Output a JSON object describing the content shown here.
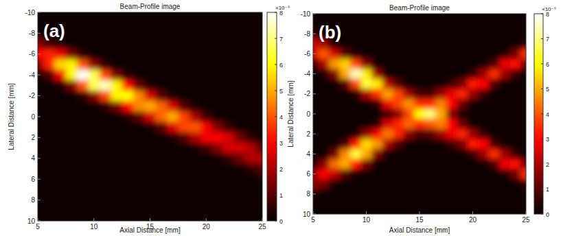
{
  "chart_data": [
    {
      "type": "heatmap",
      "title": "Beam-Profile image",
      "panel_label": "(a)",
      "x_label": "Axial Distance [mm]",
      "y_label": "Lateral Distance [mm]",
      "xlim": [
        5,
        25
      ],
      "ylim": [
        -10,
        10
      ],
      "xticks": [
        5,
        10,
        15,
        20,
        25
      ],
      "yticks": [
        -10,
        -8,
        -6,
        -4,
        -2,
        0,
        2,
        4,
        6,
        8,
        10
      ],
      "x": [
        5,
        6,
        7,
        8,
        9,
        10,
        11,
        12,
        13,
        14,
        15,
        16,
        17,
        18,
        19,
        20,
        21,
        22,
        23,
        24,
        25
      ],
      "y": [
        -10,
        -9,
        -8,
        -7,
        -6,
        -5,
        -4,
        -3,
        -2,
        -1,
        0,
        1,
        2,
        3,
        4,
        5,
        6,
        7,
        8,
        9,
        10
      ],
      "cells": [
        [
          0,
          0,
          0,
          0,
          0,
          0,
          0,
          0,
          0,
          0,
          0,
          0,
          0,
          0,
          0,
          0,
          0,
          0,
          0,
          0,
          0
        ],
        [
          0,
          0,
          0,
          0,
          0,
          0,
          0,
          0,
          0,
          0,
          0,
          0,
          0,
          0,
          0,
          0,
          0,
          0,
          0,
          0,
          0
        ],
        [
          0.2,
          0,
          0,
          0,
          0,
          0,
          0,
          0,
          0,
          0,
          0,
          0,
          0,
          0,
          0,
          0,
          0,
          0,
          0,
          0,
          0
        ],
        [
          1.5,
          0.8,
          0.3,
          0,
          0,
          0,
          0,
          0,
          0,
          0,
          0,
          0,
          0,
          0,
          0,
          0,
          0,
          0,
          0,
          0,
          0
        ],
        [
          3,
          3.4,
          2.8,
          1.4,
          0.5,
          0,
          0,
          0,
          0,
          0,
          0,
          0,
          0,
          0,
          0,
          0,
          0,
          0,
          0,
          0,
          0
        ],
        [
          1.5,
          3.4,
          5.5,
          5.9,
          4,
          1.6,
          0.5,
          0,
          0,
          0,
          0,
          0,
          0,
          0,
          0,
          0,
          0,
          0,
          0,
          0,
          0
        ],
        [
          0.2,
          0.8,
          2.8,
          5.9,
          8,
          6.7,
          3.8,
          1.4,
          0.4,
          0,
          0,
          0,
          0,
          0,
          0,
          0,
          0,
          0,
          0,
          0,
          0
        ],
        [
          0,
          0,
          0.3,
          1.4,
          4,
          6.7,
          7.5,
          5.9,
          3,
          1.1,
          0.3,
          0,
          0,
          0,
          0,
          0,
          0,
          0,
          0,
          0,
          0
        ],
        [
          0,
          0,
          0,
          0,
          0.5,
          1.6,
          3.8,
          5.9,
          6,
          4.6,
          2.5,
          1,
          0.3,
          0,
          0,
          0,
          0,
          0,
          0,
          0,
          0
        ],
        [
          0,
          0,
          0,
          0,
          0,
          0,
          0.5,
          1.4,
          3,
          4.6,
          5,
          4.2,
          2.5,
          0.9,
          0.3,
          0,
          0,
          0,
          0,
          0,
          0
        ],
        [
          0,
          0,
          0,
          0,
          0,
          0,
          0,
          0,
          0.4,
          1.1,
          2.5,
          4.2,
          5,
          3.8,
          2,
          0.7,
          0.2,
          0,
          0,
          0,
          0
        ],
        [
          0,
          0,
          0,
          0,
          0,
          0,
          0,
          0,
          0,
          0,
          0.3,
          1,
          2.5,
          3.8,
          4,
          2.9,
          1.5,
          0.6,
          0.2,
          0,
          0
        ],
        [
          0,
          0,
          0,
          0,
          0,
          0,
          0,
          0,
          0,
          0,
          0,
          0,
          0.3,
          0.9,
          2,
          2.9,
          3,
          2.5,
          1.3,
          0.5,
          0.2
        ],
        [
          0,
          0,
          0,
          0,
          0,
          0,
          0,
          0,
          0,
          0,
          0,
          0,
          0,
          0,
          0.3,
          0.7,
          1.5,
          2.5,
          2.5,
          2.1,
          1
        ],
        [
          0,
          0,
          0,
          0,
          0,
          0,
          0,
          0,
          0,
          0,
          0,
          0,
          0,
          0,
          0,
          0,
          0.2,
          0.6,
          1.3,
          2.1,
          2
        ],
        [
          0,
          0,
          0,
          0,
          0,
          0,
          0,
          0,
          0,
          0,
          0,
          0,
          0,
          0,
          0,
          0,
          0,
          0,
          0.2,
          0.5,
          1
        ],
        [
          0,
          0,
          0,
          0,
          0,
          0,
          0,
          0,
          0,
          0,
          0,
          0,
          0,
          0,
          0,
          0,
          0,
          0,
          0,
          0,
          0.2
        ],
        [
          0,
          0,
          0,
          0,
          0,
          0,
          0,
          0,
          0,
          0,
          0,
          0,
          0,
          0,
          0,
          0,
          0,
          0,
          0,
          0,
          0
        ],
        [
          0,
          0,
          0,
          0,
          0,
          0,
          0,
          0,
          0,
          0,
          0,
          0,
          0,
          0,
          0,
          0,
          0,
          0,
          0,
          0,
          0
        ],
        [
          0,
          0,
          0,
          0,
          0,
          0,
          0,
          0,
          0,
          0,
          0,
          0,
          0,
          0,
          0,
          0,
          0,
          0,
          0,
          0,
          0
        ],
        [
          0,
          0,
          0,
          0,
          0,
          0,
          0,
          0,
          0,
          0,
          0,
          0,
          0,
          0,
          0,
          0,
          0,
          0,
          0,
          0,
          0
        ]
      ],
      "colorbar": {
        "range": [
          0,
          8
        ],
        "ticks": [
          0,
          1,
          2,
          3,
          4,
          5,
          6,
          7,
          8
        ],
        "label": "×10⁻⁹"
      }
    },
    {
      "type": "heatmap",
      "title": "Beam-Profile image",
      "panel_label": "(b)",
      "x_label": "Axial Distance [mm]",
      "y_label": "Lateral Distance [mm]",
      "xlim": [
        5,
        25
      ],
      "ylim": [
        -10,
        10
      ],
      "xticks": [
        5,
        10,
        15,
        20,
        25
      ],
      "yticks": [
        -10,
        -8,
        -6,
        -4,
        -2,
        0,
        2,
        4,
        6,
        8,
        10
      ],
      "x": [
        5,
        6,
        7,
        8,
        9,
        10,
        11,
        12,
        13,
        14,
        15,
        16,
        17,
        18,
        19,
        20,
        21,
        22,
        23,
        24,
        25
      ],
      "y": [
        -10,
        -9,
        -8,
        -7,
        -6,
        -5,
        -4,
        -3,
        -2,
        -1,
        0,
        1,
        2,
        3,
        4,
        5,
        6,
        7,
        8,
        9,
        10
      ],
      "cells": [
        [
          0,
          0,
          0,
          0,
          0,
          0,
          0,
          0,
          0,
          0,
          0,
          0,
          0,
          0,
          0,
          0,
          0,
          0,
          0,
          0,
          0
        ],
        [
          0,
          0,
          0,
          0,
          0,
          0,
          0,
          0,
          0,
          0,
          0,
          0,
          0,
          0,
          0,
          0,
          0,
          0,
          0,
          0,
          0
        ],
        [
          0.6,
          0,
          0,
          0,
          0,
          0,
          0,
          0,
          0,
          0,
          0,
          0,
          0,
          0,
          0,
          0,
          0,
          0,
          0,
          0,
          0
        ],
        [
          2.5,
          1.8,
          0.2,
          0,
          0,
          0,
          0,
          0,
          0,
          0,
          0,
          0,
          0,
          0,
          0,
          0,
          0,
          0,
          0,
          0,
          0.4
        ],
        [
          2.5,
          4,
          2.5,
          1,
          0.4,
          0,
          0,
          0,
          0,
          0,
          0,
          0,
          0,
          0,
          0,
          0,
          0,
          0,
          0.3,
          1.3,
          3.5
        ],
        [
          0.6,
          2,
          4.8,
          5.5,
          3.8,
          1.5,
          0,
          0,
          0,
          0,
          0,
          0,
          0,
          0,
          0,
          0,
          0,
          0.8,
          2.8,
          3.2,
          1.3
        ],
        [
          0,
          0.3,
          1.5,
          5,
          7.5,
          5.8,
          1.8,
          0,
          0,
          0,
          0,
          0,
          0,
          0,
          0,
          0.5,
          1.8,
          3.5,
          1.8,
          0.6,
          0
        ],
        [
          0,
          0,
          0,
          0.9,
          3.8,
          6.5,
          5.8,
          2.2,
          0.9,
          0,
          0,
          0,
          0,
          0.6,
          1.4,
          3.3,
          3,
          0.8,
          0.2,
          0,
          0
        ],
        [
          0,
          0,
          0,
          0,
          0.4,
          2,
          3.5,
          4.9,
          3.8,
          1.8,
          0.8,
          0.8,
          1.8,
          2.8,
          3.4,
          1.8,
          0.6,
          0,
          0,
          0,
          0
        ],
        [
          0,
          0,
          0,
          0,
          0,
          0,
          0.5,
          2.8,
          3.8,
          4.7,
          3.5,
          3.5,
          4.5,
          3,
          1.2,
          0.2,
          0,
          0,
          0,
          0,
          0
        ],
        [
          0,
          0,
          0,
          0,
          0,
          0,
          0,
          0.6,
          1.7,
          3.8,
          6,
          7,
          5,
          1.5,
          0.3,
          0,
          0,
          0,
          0,
          0,
          0
        ],
        [
          0,
          0,
          0,
          0,
          0,
          0,
          0.4,
          2.5,
          3.4,
          4.2,
          3.5,
          4,
          4.5,
          3,
          1.2,
          0.2,
          0,
          0,
          0,
          0,
          0
        ],
        [
          0,
          0,
          0,
          0,
          0.3,
          1.7,
          2.9,
          4.4,
          3.4,
          1.6,
          0.8,
          1,
          1.8,
          2.8,
          3.4,
          1.8,
          0.6,
          0,
          0,
          0,
          0
        ],
        [
          0,
          0,
          0,
          0.8,
          3.3,
          5.6,
          4.8,
          2,
          0.8,
          0,
          0,
          0,
          0,
          0.6,
          1.4,
          3.3,
          3,
          0.8,
          0.2,
          0,
          0
        ],
        [
          0,
          0.2,
          1.3,
          4.6,
          6.5,
          5,
          1.5,
          0,
          0,
          0,
          0,
          0,
          0,
          0,
          0,
          0.5,
          1.8,
          3.5,
          1.8,
          0.6,
          0
        ],
        [
          0.4,
          1.5,
          4.3,
          5,
          3.3,
          1.3,
          0,
          0,
          0,
          0,
          0,
          0,
          0,
          0,
          0,
          0,
          0,
          0.8,
          2.8,
          3.2,
          1.3
        ],
        [
          1.7,
          3,
          2.2,
          0.9,
          0.3,
          0,
          0,
          0,
          0,
          0,
          0,
          0,
          0,
          0,
          0,
          0,
          0,
          0,
          0.3,
          1.3,
          3.5
        ],
        [
          1.7,
          1.3,
          0,
          0,
          0,
          0,
          0,
          0,
          0,
          0,
          0,
          0,
          0,
          0,
          0,
          0,
          0,
          0,
          0,
          0,
          0.4
        ],
        [
          0.4,
          0,
          0,
          0,
          0,
          0,
          0,
          0,
          0,
          0,
          0,
          0,
          0,
          0,
          0,
          0,
          0,
          0,
          0,
          0,
          0
        ],
        [
          0,
          0,
          0,
          0,
          0,
          0,
          0,
          0,
          0,
          0,
          0,
          0,
          0,
          0,
          0,
          0,
          0,
          0,
          0,
          0,
          0
        ],
        [
          0,
          0,
          0,
          0,
          0,
          0,
          0,
          0,
          0,
          0,
          0,
          0,
          0,
          0,
          0,
          0,
          0,
          0,
          0,
          0,
          0
        ]
      ],
      "colorbar": {
        "range": [
          0,
          8
        ],
        "ticks": [
          0,
          1,
          2,
          3,
          4,
          5,
          6,
          7,
          8
        ],
        "label": "×10⁻⁹"
      }
    }
  ]
}
